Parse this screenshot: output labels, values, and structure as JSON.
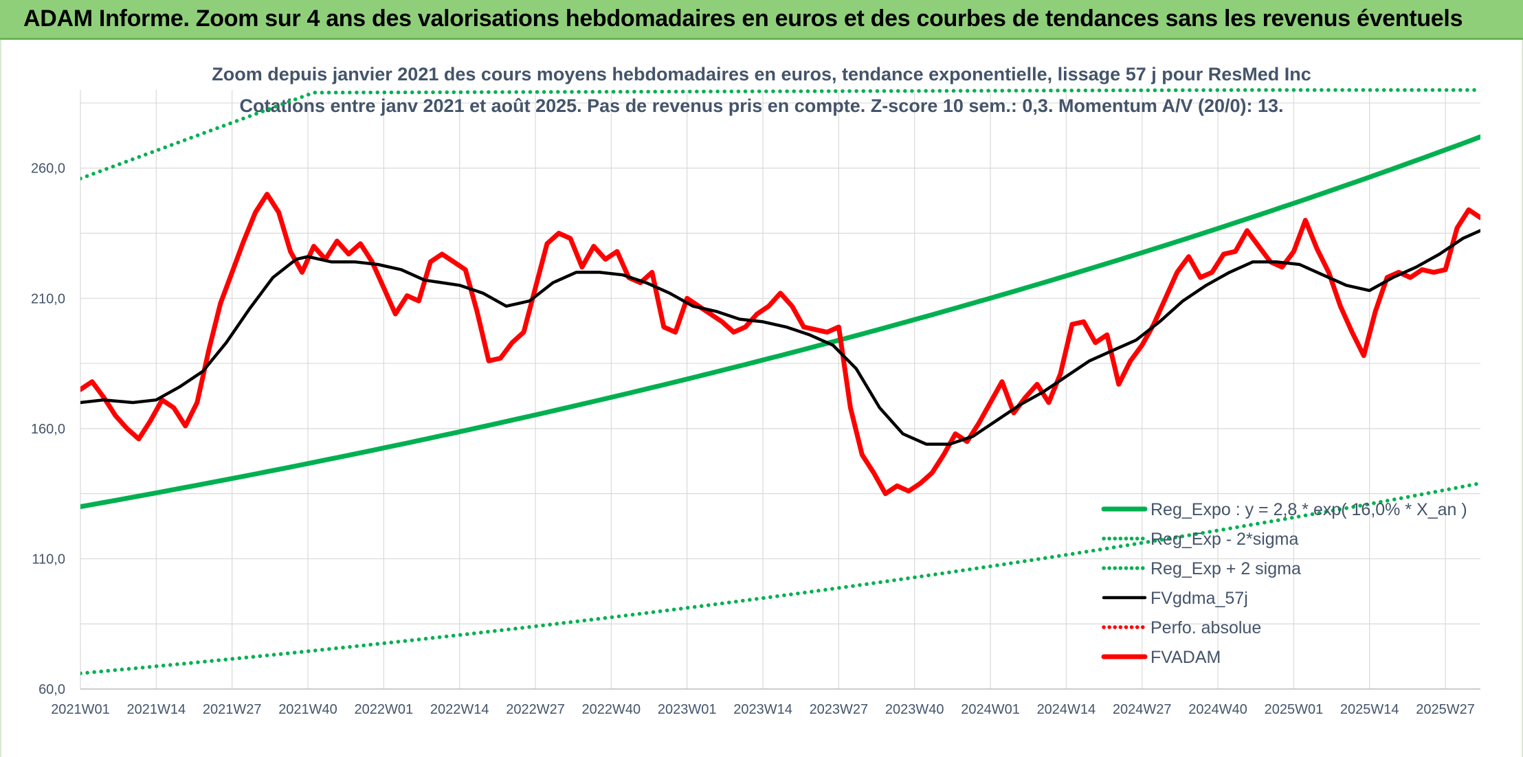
{
  "header": {
    "banner_title": "ADAM Informe. Zoom sur 4 ans des valorisations hebdomadaires en euros et des courbes de tendances sans les revenus éventuels"
  },
  "colors": {
    "banner_bg": "#8fcf7a",
    "trend": "#00b050",
    "fvadam": "#ff0000",
    "fvgdma": "#000000",
    "grid": "#d9d9d9",
    "text": "#44546a"
  },
  "chart_data": {
    "type": "line",
    "title": "Zoom depuis janvier 2021 des cours moyens hebdomadaires en euros, tendance exponentielle, lissage 57 j pour ResMed Inc",
    "subtitle": "Cotations entre janv 2021 et août 2025. Pas de revenus pris en compte. Z-score 10 sem.: 0,3. Momentum A/V (20/0): 13.",
    "xlabel": "",
    "ylabel": "",
    "ylim": [
      60,
      290
    ],
    "y_ticks": [
      "60,0",
      "110,0",
      "160,0",
      "210,0",
      "260,0"
    ],
    "y_tick_values": [
      60,
      110,
      160,
      210,
      260
    ],
    "x_range": [
      1,
      241
    ],
    "x_ticks": [
      "2021W01",
      "2021W14",
      "2021W27",
      "2021W40",
      "2022W01",
      "2022W14",
      "2022W27",
      "2022W40",
      "2023W01",
      "2023W14",
      "2023W27",
      "2023W40",
      "2024W01",
      "2024W14",
      "2024W27",
      "2024W40",
      "2025W01",
      "2025W14",
      "2025W27"
    ],
    "x_tick_weeks": [
      1,
      14,
      27,
      40,
      53,
      66,
      79,
      92,
      105,
      118,
      131,
      144,
      157,
      170,
      183,
      196,
      209,
      222,
      235
    ],
    "grid": "horizontal and vertical",
    "legend_placement": "bottom-right",
    "legend": [
      {
        "label": "Reg_Expo : y = 2,8 * exp( 16,0% * X_an )",
        "color": "#00b050",
        "style": "solid-thick"
      },
      {
        "label": "Reg_Exp - 2*sigma",
        "color": "#00b050",
        "style": "dotted"
      },
      {
        "label": "Reg_Exp + 2 sigma",
        "color": "#00b050",
        "style": "dotted"
      },
      {
        "label": "FVgdma_57j",
        "color": "#000000",
        "style": "solid"
      },
      {
        "label": "Perfo. absolue",
        "color": "#ff0000",
        "style": "dotted"
      },
      {
        "label": "FVADAM",
        "color": "#ff0000",
        "style": "solid-thick"
      }
    ],
    "series": [
      {
        "name": "Reg_Expo : y = 2,8 * exp( 16,0% * X_an )",
        "x": [
          1,
          241
        ],
        "values": [
          130,
          272
        ],
        "interpolation": "exponential"
      },
      {
        "name": "Reg_Exp - 2*sigma",
        "x": [
          1,
          241
        ],
        "values": [
          66,
          139
        ],
        "interpolation": "exponential"
      },
      {
        "name": "Reg_Exp + 2 sigma",
        "x": [
          1,
          41,
          201,
          241
        ],
        "values": [
          256,
          289,
          290,
          290
        ],
        "interpolation": "linear"
      },
      {
        "name": "FVgdma_57j",
        "x": [
          1,
          5,
          10,
          14,
          18,
          22,
          26,
          30,
          34,
          38,
          40,
          44,
          48,
          52,
          56,
          60,
          66,
          70,
          74,
          78,
          82,
          86,
          90,
          94,
          98,
          102,
          106,
          110,
          114,
          118,
          122,
          126,
          130,
          134,
          138,
          142,
          146,
          150,
          154,
          158,
          162,
          166,
          170,
          174,
          178,
          182,
          186,
          190,
          194,
          198,
          202,
          206,
          210,
          214,
          218,
          222,
          226,
          230,
          234,
          238,
          241
        ],
        "values": [
          170,
          171,
          170,
          171,
          176,
          182,
          193,
          206,
          218,
          225,
          226,
          224,
          224,
          223,
          221,
          217,
          215,
          212,
          207,
          209,
          216,
          220,
          220,
          219,
          216,
          212,
          207,
          205,
          202,
          201,
          199,
          196,
          192,
          183,
          168,
          158,
          154,
          154,
          157,
          163,
          169,
          174,
          180,
          186,
          190,
          194,
          201,
          209,
          215,
          220,
          224,
          224,
          223,
          219,
          215,
          213,
          218,
          222,
          227,
          233,
          236
        ]
      },
      {
        "name": "FVADAM",
        "x": [
          1,
          3,
          5,
          7,
          9,
          11,
          13,
          15,
          17,
          19,
          21,
          23,
          25,
          27,
          29,
          31,
          33,
          35,
          37,
          39,
          41,
          43,
          45,
          47,
          49,
          51,
          53,
          55,
          57,
          59,
          61,
          63,
          65,
          67,
          69,
          71,
          73,
          75,
          77,
          79,
          81,
          83,
          85,
          87,
          89,
          91,
          93,
          95,
          97,
          99,
          101,
          103,
          105,
          107,
          109,
          111,
          113,
          115,
          117,
          119,
          121,
          123,
          125,
          127,
          129,
          131,
          133,
          135,
          137,
          139,
          141,
          143,
          145,
          147,
          149,
          151,
          153,
          155,
          157,
          159,
          161,
          163,
          165,
          167,
          169,
          171,
          173,
          175,
          177,
          179,
          181,
          183,
          185,
          187,
          189,
          191,
          193,
          195,
          197,
          199,
          201,
          203,
          205,
          207,
          209,
          211,
          213,
          215,
          217,
          219,
          221,
          223,
          225,
          227,
          229,
          231,
          233,
          235,
          237,
          239,
          241
        ],
        "values": [
          175,
          178,
          172,
          165,
          160,
          156,
          163,
          171,
          168,
          161,
          170,
          190,
          208,
          220,
          232,
          243,
          250,
          243,
          228,
          220,
          230,
          225,
          232,
          227,
          231,
          224,
          214,
          204,
          211,
          209,
          224,
          227,
          224,
          221,
          205,
          186,
          187,
          193,
          197,
          214,
          231,
          235,
          233,
          222,
          230,
          225,
          228,
          218,
          216,
          220,
          199,
          197,
          210,
          207,
          204,
          201,
          197,
          199,
          204,
          207,
          212,
          207,
          199,
          198,
          197,
          199,
          168,
          150,
          143,
          135,
          138,
          136,
          139,
          143,
          150,
          158,
          155,
          162,
          170,
          178,
          166,
          172,
          177,
          170,
          181,
          200,
          201,
          193,
          196,
          177,
          186,
          192,
          200,
          210,
          220,
          226,
          218,
          220,
          227,
          228,
          236,
          230,
          224,
          222,
          228,
          240,
          229,
          220,
          207,
          197,
          188,
          205,
          218,
          220,
          218,
          221,
          220,
          221,
          237,
          244,
          241
        ]
      }
    ]
  }
}
